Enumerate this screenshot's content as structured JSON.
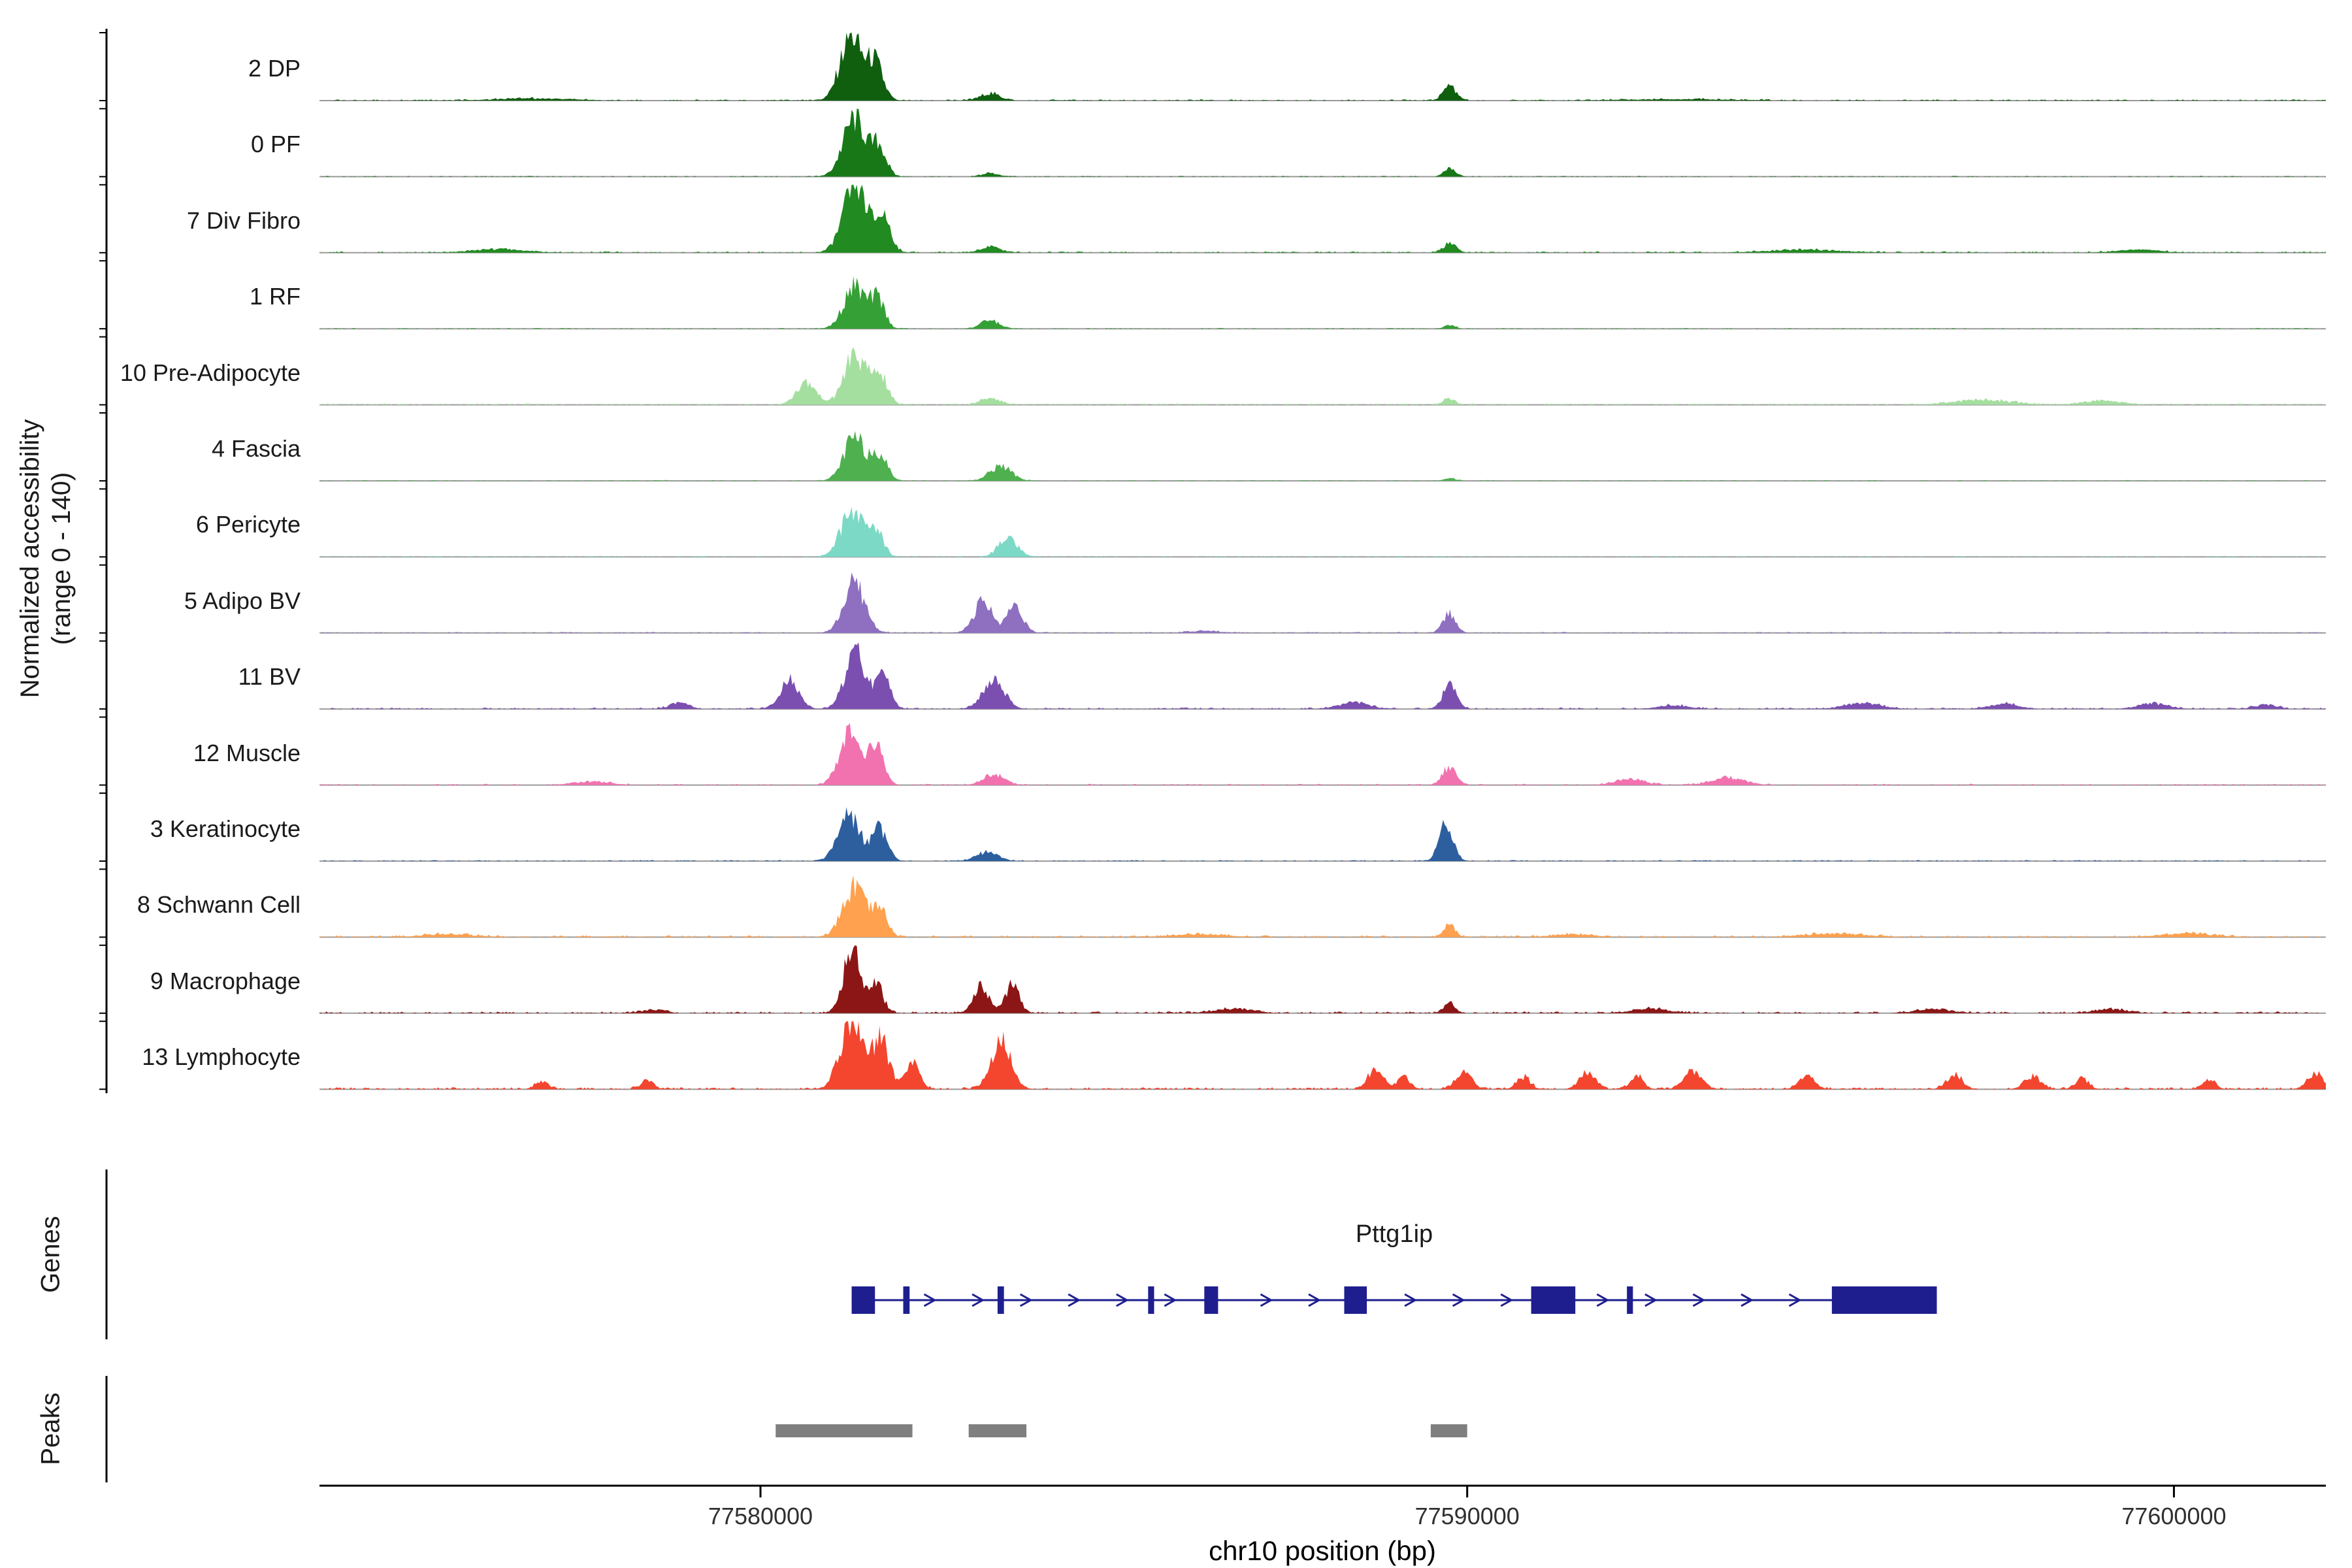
{
  "labels": {
    "y_axis_line1": "Normalized accessibility",
    "y_axis_line2": "(range 0 - 140)",
    "genes": "Genes",
    "peaks": "Peaks"
  },
  "chart_data": {
    "type": "area",
    "title": "",
    "xlabel": "chr10 position (bp)",
    "ylabel": "Normalized accessibility (range 0 - 140)",
    "x_domain": [
      77573760,
      77602150
    ],
    "x_ticks": [
      77580000,
      77590000,
      77600000
    ],
    "x_tick_labels": [
      "77580000",
      "77590000",
      "77600000"
    ],
    "y_range_per_track": [
      0,
      140
    ],
    "gene_color": "#1e1e8f",
    "peak_color": "#7f7f7f",
    "tracks": [
      {
        "label": "2 DP",
        "color": "#0F5F0F",
        "noise": 0.018,
        "bumps": [
          [
            77581280,
            0.95,
            150
          ],
          [
            77581620,
            0.55,
            110
          ],
          [
            77583250,
            0.1,
            140
          ],
          [
            77589750,
            0.22,
            90
          ],
          [
            77576800,
            0.03,
            500
          ],
          [
            77593000,
            0.02,
            700
          ]
        ]
      },
      {
        "label": "0 PF",
        "color": "#187818",
        "noise": 0.012,
        "bumps": [
          [
            77581330,
            0.85,
            160
          ],
          [
            77581680,
            0.42,
            100
          ],
          [
            77583250,
            0.05,
            120
          ],
          [
            77589750,
            0.12,
            80
          ]
        ]
      },
      {
        "label": "7 Div Fibro",
        "color": "#218A21",
        "noise": 0.02,
        "bumps": [
          [
            77581350,
            1.0,
            170
          ],
          [
            77581750,
            0.5,
            100
          ],
          [
            77583250,
            0.09,
            140
          ],
          [
            77589750,
            0.14,
            90
          ],
          [
            77576300,
            0.05,
            350
          ],
          [
            77594800,
            0.04,
            500
          ],
          [
            77599500,
            0.04,
            300
          ]
        ]
      },
      {
        "label": "1 RF",
        "color": "#35A035",
        "noise": 0.012,
        "bumps": [
          [
            77581330,
            0.62,
            150
          ],
          [
            77581660,
            0.42,
            100
          ],
          [
            77583250,
            0.12,
            130
          ],
          [
            77589750,
            0.05,
            80
          ]
        ]
      },
      {
        "label": "10 Pre-Adipocyte",
        "color": "#A5DFA0",
        "noise": 0.018,
        "bumps": [
          [
            77580650,
            0.32,
            140
          ],
          [
            77581330,
            0.72,
            150
          ],
          [
            77581680,
            0.45,
            110
          ],
          [
            77583250,
            0.1,
            130
          ],
          [
            77589750,
            0.09,
            80
          ],
          [
            77597300,
            0.07,
            400
          ],
          [
            77599000,
            0.06,
            250
          ]
        ]
      },
      {
        "label": "4 Fascia",
        "color": "#4FB04F",
        "noise": 0.012,
        "bumps": [
          [
            77581330,
            0.62,
            150
          ],
          [
            77581680,
            0.4,
            110
          ],
          [
            77583400,
            0.22,
            150
          ],
          [
            77589750,
            0.04,
            80
          ]
        ]
      },
      {
        "label": "6 Pericyte",
        "color": "#7CD9C6",
        "noise": 0.012,
        "bumps": [
          [
            77581300,
            0.68,
            160
          ],
          [
            77581650,
            0.35,
            100
          ],
          [
            77583500,
            0.28,
            130
          ]
        ]
      },
      {
        "label": "5 Adipo BV",
        "color": "#8E6FC0",
        "noise": 0.016,
        "bumps": [
          [
            77581330,
            0.72,
            150
          ],
          [
            77583150,
            0.45,
            130
          ],
          [
            77583600,
            0.42,
            110
          ],
          [
            77589750,
            0.28,
            90
          ],
          [
            77586300,
            0.03,
            200
          ]
        ]
      },
      {
        "label": "11 BV",
        "color": "#7B4FB0",
        "noise": 0.022,
        "bumps": [
          [
            77578850,
            0.1,
            120
          ],
          [
            77580400,
            0.42,
            130
          ],
          [
            77581350,
            0.8,
            150
          ],
          [
            77581750,
            0.48,
            100
          ],
          [
            77583300,
            0.4,
            150
          ],
          [
            77588400,
            0.1,
            200
          ],
          [
            77589750,
            0.33,
            100
          ],
          [
            77592900,
            0.05,
            200
          ],
          [
            77595600,
            0.08,
            250
          ],
          [
            77597600,
            0.07,
            200
          ],
          [
            77599700,
            0.08,
            200
          ],
          [
            77601300,
            0.06,
            150
          ]
        ]
      },
      {
        "label": "12 Muscle",
        "color": "#F272B0",
        "noise": 0.018,
        "bumps": [
          [
            77577600,
            0.05,
            250
          ],
          [
            77581250,
            0.75,
            140
          ],
          [
            77581630,
            0.58,
            110
          ],
          [
            77583300,
            0.16,
            140
          ],
          [
            77589750,
            0.26,
            100
          ],
          [
            77592300,
            0.09,
            200
          ],
          [
            77593700,
            0.11,
            220
          ]
        ]
      },
      {
        "label": "3 Keratinocyte",
        "color": "#2D5F9F",
        "noise": 0.016,
        "bumps": [
          [
            77581250,
            0.7,
            150
          ],
          [
            77581680,
            0.48,
            110
          ],
          [
            77583200,
            0.13,
            150
          ],
          [
            77589700,
            0.52,
            100
          ]
        ]
      },
      {
        "label": "8 Schwann Cell",
        "color": "#FFA14E",
        "noise": 0.026,
        "bumps": [
          [
            77581330,
            0.72,
            160
          ],
          [
            77581700,
            0.38,
            100
          ],
          [
            77589750,
            0.18,
            80
          ],
          [
            77575600,
            0.04,
            350
          ],
          [
            77586200,
            0.04,
            350
          ],
          [
            77591500,
            0.04,
            250
          ],
          [
            77595200,
            0.05,
            400
          ],
          [
            77600200,
            0.05,
            350
          ]
        ]
      },
      {
        "label": "9 Macrophage",
        "color": "#8C1616",
        "noise": 0.026,
        "bumps": [
          [
            77581300,
            1.0,
            120
          ],
          [
            77581650,
            0.4,
            90
          ],
          [
            77583120,
            0.38,
            110
          ],
          [
            77583560,
            0.4,
            100
          ],
          [
            77586700,
            0.06,
            250
          ],
          [
            77589750,
            0.14,
            80
          ],
          [
            77592600,
            0.06,
            250
          ],
          [
            77596600,
            0.05,
            250
          ],
          [
            77599100,
            0.06,
            200
          ],
          [
            77578500,
            0.05,
            150
          ]
        ]
      },
      {
        "label": "13 Lymphocyte",
        "color": "#F4452E",
        "noise": 0.03,
        "bumps": [
          [
            77576900,
            0.1,
            90
          ],
          [
            77578400,
            0.12,
            90
          ],
          [
            77581280,
            1.0,
            150
          ],
          [
            77581700,
            0.72,
            120
          ],
          [
            77582150,
            0.38,
            100
          ],
          [
            77583400,
            0.7,
            140
          ],
          [
            77588700,
            0.28,
            110
          ],
          [
            77589100,
            0.18,
            90
          ],
          [
            77589950,
            0.26,
            110
          ],
          [
            77590800,
            0.18,
            90
          ],
          [
            77591700,
            0.24,
            110
          ],
          [
            77592400,
            0.2,
            90
          ],
          [
            77593200,
            0.26,
            120
          ],
          [
            77594800,
            0.18,
            110
          ],
          [
            77596900,
            0.2,
            110
          ],
          [
            77598000,
            0.19,
            110
          ],
          [
            77598700,
            0.16,
            90
          ],
          [
            77600500,
            0.12,
            90
          ],
          [
            77602000,
            0.22,
            110
          ]
        ]
      }
    ],
    "gene": {
      "name": "Pttg1ip",
      "strand": "+",
      "start": 77581290,
      "end": 77596645,
      "exons": [
        [
          77581290,
          77581620
        ],
        [
          77582020,
          77582110
        ],
        [
          77583355,
          77583445
        ],
        [
          77585485,
          77585570
        ],
        [
          77586280,
          77586475
        ],
        [
          77588260,
          77588580
        ],
        [
          77590905,
          77591530
        ],
        [
          77592260,
          77592345
        ],
        [
          77595160,
          77596645
        ]
      ]
    },
    "peaks": [
      [
        77580215,
        77582150
      ],
      [
        77582946,
        77583763
      ],
      [
        77589484,
        77590000
      ]
    ]
  }
}
